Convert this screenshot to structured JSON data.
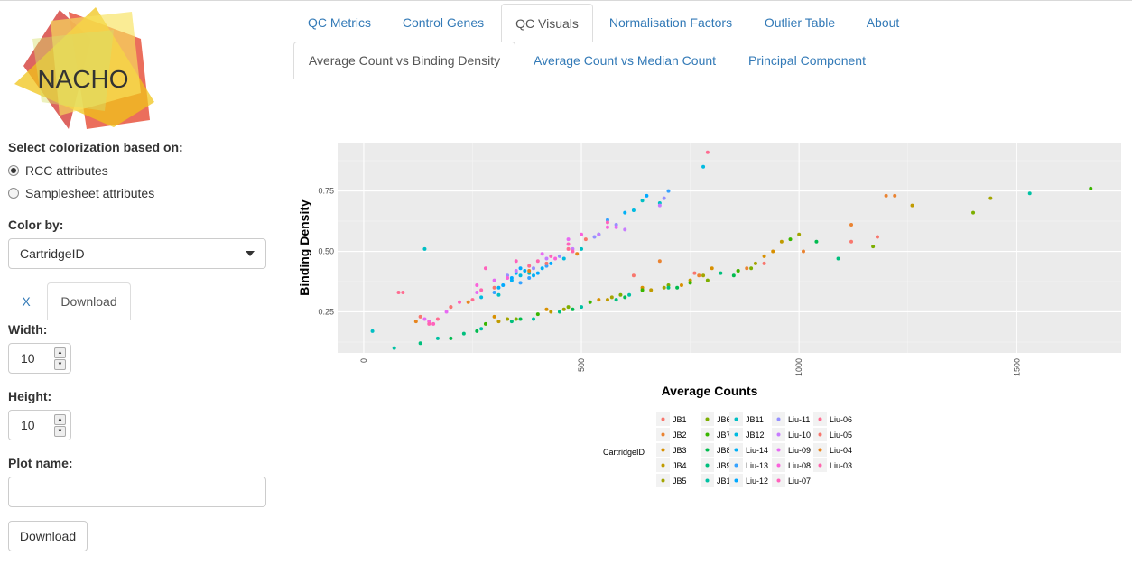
{
  "logo": {
    "text": "NACHO"
  },
  "sidebar": {
    "colorize_label": "Select colorization based on:",
    "radio": [
      {
        "label": "RCC attributes",
        "checked": true
      },
      {
        "label": "Samplesheet attributes",
        "checked": false
      }
    ],
    "color_by_label": "Color by:",
    "color_by_value": "CartridgeID",
    "subtabs": {
      "x": "X",
      "download": "Download"
    },
    "width_label": "Width:",
    "width_value": "10",
    "height_label": "Height:",
    "height_value": "10",
    "plot_name_label": "Plot name:",
    "plot_name_value": "",
    "download_button": "Download"
  },
  "tabs": [
    "QC Metrics",
    "Control Genes",
    "QC Visuals",
    "Normalisation Factors",
    "Outlier Table",
    "About"
  ],
  "active_tab": "QC Visuals",
  "subtabs": [
    "Average Count vs Binding Density",
    "Average Count vs Median Count",
    "Principal Component"
  ],
  "active_subtab": "Average Count vs Binding Density",
  "colors": {
    "link": "#337ab7",
    "panel_bg": "#ebebeb"
  },
  "chart_data": {
    "type": "scatter",
    "xlabel": "Average Counts",
    "ylabel": "Binding Density",
    "xlim": [
      -60,
      1740
    ],
    "ylim": [
      0.08,
      0.95
    ],
    "x_ticks": [
      "0",
      "500",
      "1000",
      "1500"
    ],
    "y_ticks": [
      "0.25",
      "0.50",
      "0.75"
    ],
    "grid": true,
    "legend_title": "CartridgeID",
    "legend_position": "bottom",
    "series": [
      {
        "name": "JB1",
        "color": "#F8766D",
        "points": [
          [
            620,
            0.4
          ],
          [
            760,
            0.41
          ],
          [
            920,
            0.45
          ],
          [
            1120,
            0.54
          ],
          [
            1180,
            0.56
          ]
        ]
      },
      {
        "name": "JB2",
        "color": "#EA8331",
        "points": [
          [
            680,
            0.46
          ],
          [
            770,
            0.4
          ],
          [
            880,
            0.43
          ],
          [
            1010,
            0.5
          ],
          [
            1120,
            0.61
          ],
          [
            1200,
            0.73
          ],
          [
            1220,
            0.73
          ]
        ]
      },
      {
        "name": "JB3",
        "color": "#D89000",
        "points": [
          [
            300,
            0.23
          ],
          [
            420,
            0.26
          ],
          [
            540,
            0.3
          ],
          [
            640,
            0.35
          ],
          [
            730,
            0.36
          ],
          [
            800,
            0.43
          ],
          [
            920,
            0.48
          ],
          [
            940,
            0.5
          ]
        ]
      },
      {
        "name": "JB4",
        "color": "#C09B00",
        "points": [
          [
            310,
            0.21
          ],
          [
            430,
            0.25
          ],
          [
            560,
            0.3
          ],
          [
            660,
            0.34
          ],
          [
            750,
            0.38
          ],
          [
            860,
            0.42
          ],
          [
            960,
            0.54
          ],
          [
            1260,
            0.69
          ]
        ]
      },
      {
        "name": "JB5",
        "color": "#A3A500",
        "points": [
          [
            330,
            0.22
          ],
          [
            460,
            0.26
          ],
          [
            570,
            0.31
          ],
          [
            690,
            0.35
          ],
          [
            780,
            0.4
          ],
          [
            900,
            0.45
          ],
          [
            1000,
            0.57
          ],
          [
            1440,
            0.72
          ]
        ]
      },
      {
        "name": "JB6",
        "color": "#7CAE00",
        "points": [
          [
            350,
            0.22
          ],
          [
            470,
            0.27
          ],
          [
            590,
            0.32
          ],
          [
            700,
            0.36
          ],
          [
            790,
            0.38
          ],
          [
            890,
            0.43
          ],
          [
            1170,
            0.52
          ],
          [
            1400,
            0.66
          ]
        ]
      },
      {
        "name": "JB7",
        "color": "#39B600",
        "points": [
          [
            280,
            0.2
          ],
          [
            400,
            0.24
          ],
          [
            520,
            0.29
          ],
          [
            640,
            0.34
          ],
          [
            750,
            0.37
          ],
          [
            860,
            0.42
          ],
          [
            980,
            0.55
          ],
          [
            1670,
            0.76
          ]
        ]
      },
      {
        "name": "JB8",
        "color": "#00BB4E",
        "points": [
          [
            200,
            0.14
          ],
          [
            260,
            0.17
          ],
          [
            360,
            0.22
          ],
          [
            480,
            0.26
          ],
          [
            600,
            0.31
          ],
          [
            720,
            0.35
          ],
          [
            850,
            0.4
          ],
          [
            1040,
            0.54
          ]
        ]
      },
      {
        "name": "JB9",
        "color": "#00BF7D",
        "points": [
          [
            130,
            0.12
          ],
          [
            230,
            0.16
          ],
          [
            340,
            0.21
          ],
          [
            450,
            0.25
          ],
          [
            580,
            0.3
          ],
          [
            700,
            0.35
          ],
          [
            820,
            0.41
          ],
          [
            1090,
            0.47
          ]
        ]
      },
      {
        "name": "JB10",
        "color": "#00C1A3",
        "points": [
          [
            70,
            0.1
          ],
          [
            170,
            0.14
          ],
          [
            270,
            0.18
          ],
          [
            390,
            0.22
          ],
          [
            500,
            0.27
          ],
          [
            610,
            0.32
          ],
          [
            1530,
            0.74
          ]
        ]
      },
      {
        "name": "JB11",
        "color": "#00BFC4",
        "points": [
          [
            20,
            0.17
          ],
          [
            140,
            0.51
          ],
          [
            310,
            0.32
          ],
          [
            380,
            0.41
          ],
          [
            500,
            0.51
          ],
          [
            640,
            0.71
          ],
          [
            680,
            0.7
          ]
        ]
      },
      {
        "name": "JB12",
        "color": "#00BAE0",
        "points": [
          [
            270,
            0.31
          ],
          [
            360,
            0.4
          ],
          [
            460,
            0.47
          ],
          [
            540,
            0.57
          ],
          [
            620,
            0.67
          ],
          [
            780,
            0.85
          ]
        ]
      },
      {
        "name": "Liu-14",
        "color": "#00B0F6",
        "points": [
          [
            310,
            0.35
          ],
          [
            340,
            0.38
          ],
          [
            350,
            0.41
          ],
          [
            370,
            0.42
          ],
          [
            390,
            0.4
          ],
          [
            410,
            0.43
          ],
          [
            600,
            0.66
          ]
        ]
      },
      {
        "name": "Liu-13",
        "color": "#35A2FF",
        "points": [
          [
            300,
            0.33
          ],
          [
            360,
            0.37
          ],
          [
            380,
            0.39
          ],
          [
            420,
            0.44
          ],
          [
            560,
            0.63
          ],
          [
            700,
            0.75
          ]
        ]
      },
      {
        "name": "Liu-12",
        "color": "#00A9FF",
        "points": [
          [
            320,
            0.36
          ],
          [
            340,
            0.39
          ],
          [
            360,
            0.43
          ],
          [
            400,
            0.41
          ],
          [
            430,
            0.45
          ],
          [
            650,
            0.73
          ]
        ]
      },
      {
        "name": "Liu-11",
        "color": "#9590FF",
        "points": [
          [
            330,
            0.4
          ],
          [
            390,
            0.43
          ],
          [
            450,
            0.48
          ],
          [
            530,
            0.56
          ],
          [
            580,
            0.61
          ],
          [
            690,
            0.72
          ]
        ]
      },
      {
        "name": "Liu-10",
        "color": "#C77CFF",
        "points": [
          [
            350,
            0.42
          ],
          [
            420,
            0.47
          ],
          [
            480,
            0.51
          ],
          [
            540,
            0.57
          ],
          [
            600,
            0.59
          ],
          [
            680,
            0.69
          ]
        ]
      },
      {
        "name": "Liu-09",
        "color": "#E76BF3",
        "points": [
          [
            140,
            0.22
          ],
          [
            190,
            0.25
          ],
          [
            260,
            0.33
          ],
          [
            300,
            0.38
          ],
          [
            410,
            0.49
          ],
          [
            470,
            0.55
          ],
          [
            580,
            0.6
          ]
        ]
      },
      {
        "name": "Liu-08",
        "color": "#FA62DB",
        "points": [
          [
            150,
            0.21
          ],
          [
            200,
            0.27
          ],
          [
            260,
            0.36
          ],
          [
            330,
            0.39
          ],
          [
            440,
            0.47
          ],
          [
            500,
            0.57
          ],
          [
            560,
            0.6
          ]
        ]
      },
      {
        "name": "Liu-07",
        "color": "#FF62BC",
        "points": [
          [
            160,
            0.2
          ],
          [
            220,
            0.29
          ],
          [
            280,
            0.43
          ],
          [
            350,
            0.46
          ],
          [
            430,
            0.48
          ],
          [
            470,
            0.53
          ],
          [
            560,
            0.62
          ]
        ]
      },
      {
        "name": "Liu-06",
        "color": "#FF6C91",
        "points": [
          [
            80,
            0.33
          ],
          [
            90,
            0.33
          ],
          [
            170,
            0.22
          ],
          [
            250,
            0.3
          ],
          [
            380,
            0.44
          ],
          [
            470,
            0.51
          ],
          [
            790,
            0.91
          ]
        ]
      },
      {
        "name": "Liu-05",
        "color": "#F8766D",
        "points": [
          [
            130,
            0.23
          ],
          [
            200,
            0.27
          ],
          [
            300,
            0.35
          ],
          [
            420,
            0.45
          ],
          [
            510,
            0.55
          ]
        ]
      },
      {
        "name": "Liu-04",
        "color": "#E7851E",
        "points": [
          [
            120,
            0.21
          ],
          [
            240,
            0.29
          ],
          [
            380,
            0.42
          ],
          [
            490,
            0.49
          ]
        ]
      },
      {
        "name": "Liu-03",
        "color": "#FF65AE",
        "points": [
          [
            150,
            0.2
          ],
          [
            270,
            0.34
          ],
          [
            400,
            0.46
          ],
          [
            480,
            0.5
          ]
        ]
      }
    ]
  }
}
